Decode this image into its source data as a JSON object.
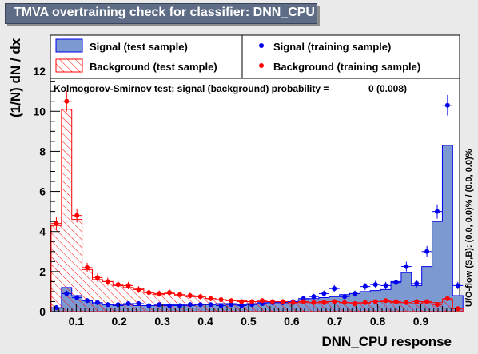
{
  "header": {
    "title": "TMVA overtraining check for classifier: DNN_CPU"
  },
  "legend": {
    "sig_test": "Signal (test sample)",
    "bkg_test": "Background (test sample)",
    "sig_train": "Signal (training sample)",
    "bkg_train": "Background (training sample)"
  },
  "ks_text": "Kolmogorov-Smirnov test: signal (background) probability =",
  "ks_value": "0 (0.008)",
  "side_label": "U/O-flow (S,B): (0.0, 0.0)% / (0.0, 0.0)%",
  "colors": {
    "signal": "#7d99d1",
    "signal_line": "#0000ee",
    "background": "#ff0000",
    "frame_bg": "#eaeaea"
  },
  "chart_data": {
    "type": "histogram",
    "xlabel": "DNN_CPU response",
    "ylabel": "(1/N)  dN / dx",
    "xlim": [
      0.04,
      0.99
    ],
    "ylim": [
      0,
      13.8
    ],
    "x_ticks": [
      "0.1",
      "0.2",
      "0.3",
      "0.4",
      "0.5",
      "0.6",
      "0.7",
      "0.8",
      "0.9"
    ],
    "x_tick_values": [
      0.1,
      0.2,
      0.3,
      0.4,
      0.5,
      0.6,
      0.7,
      0.8,
      0.9
    ],
    "y_ticks": [
      "0",
      "2",
      "4",
      "6",
      "8",
      "10",
      "12"
    ],
    "y_tick_values": [
      0,
      2,
      4,
      6,
      8,
      10,
      12
    ],
    "bins": [
      0.0418,
      0.0657,
      0.0896,
      0.1135,
      0.1374,
      0.1613,
      0.1852,
      0.2091,
      0.233,
      0.2569,
      0.2808,
      0.3047,
      0.3286,
      0.3525,
      0.3764,
      0.4003,
      0.4242,
      0.4481,
      0.472,
      0.4959,
      0.5198,
      0.5437,
      0.5676,
      0.5915,
      0.6154,
      0.6393,
      0.6632,
      0.6871,
      0.711,
      0.7349,
      0.7588,
      0.7827,
      0.8066,
      0.8305,
      0.8544,
      0.8783,
      0.9022,
      0.9261,
      0.95,
      0.9739,
      0.9978
    ],
    "series": [
      {
        "name": "Signal (test sample)",
        "style": "filled-histogram",
        "values": [
          0.2,
          1.2,
          0.8,
          0.55,
          0.4,
          0.35,
          0.3,
          0.35,
          0.3,
          0.3,
          0.3,
          0.35,
          0.35,
          0.3,
          0.35,
          0.35,
          0.4,
          0.4,
          0.35,
          0.4,
          0.45,
          0.45,
          0.45,
          0.5,
          0.6,
          0.65,
          0.7,
          0.75,
          0.85,
          0.9,
          1.0,
          1.05,
          1.1,
          1.5,
          1.95,
          1.3,
          2.25,
          4.5,
          8.3,
          0.8
        ]
      },
      {
        "name": "Background (test sample)",
        "style": "hatched-histogram",
        "values": [
          4.3,
          10.1,
          4.6,
          2.1,
          1.6,
          1.5,
          1.3,
          1.2,
          1.15,
          0.95,
          0.85,
          0.9,
          0.8,
          0.75,
          0.75,
          0.65,
          0.6,
          0.55,
          0.55,
          0.5,
          0.5,
          0.5,
          0.45,
          0.45,
          0.45,
          0.45,
          0.5,
          0.5,
          0.45,
          0.45,
          0.4,
          0.5,
          0.5,
          0.45,
          0.45,
          0.4,
          0.45,
          0.45,
          0.6,
          0.15
        ]
      },
      {
        "name": "Signal (training sample)",
        "style": "points",
        "values": [
          0.2,
          0.9,
          0.7,
          0.55,
          0.45,
          0.35,
          0.35,
          0.4,
          0.4,
          0.3,
          0.35,
          0.3,
          0.3,
          0.35,
          0.35,
          0.35,
          0.3,
          0.35,
          0.3,
          0.35,
          0.4,
          0.45,
          0.45,
          0.5,
          0.65,
          0.75,
          0.9,
          1.15,
          0.75,
          0.9,
          1.25,
          1.35,
          1.3,
          1.45,
          2.25,
          1.4,
          3.0,
          5.0,
          10.3,
          1.3
        ]
      },
      {
        "name": "Background (training sample)",
        "style": "points",
        "values": [
          4.4,
          10.5,
          4.8,
          2.2,
          1.7,
          1.5,
          1.35,
          1.3,
          1.1,
          0.95,
          0.9,
          0.95,
          0.85,
          0.8,
          0.75,
          0.65,
          0.6,
          0.55,
          0.5,
          0.5,
          0.55,
          0.5,
          0.5,
          0.45,
          0.5,
          0.45,
          0.45,
          0.5,
          0.45,
          0.4,
          0.45,
          0.5,
          0.55,
          0.5,
          0.45,
          0.5,
          0.5,
          0.35,
          0.65,
          0.15
        ]
      }
    ],
    "legend_position": "top"
  }
}
